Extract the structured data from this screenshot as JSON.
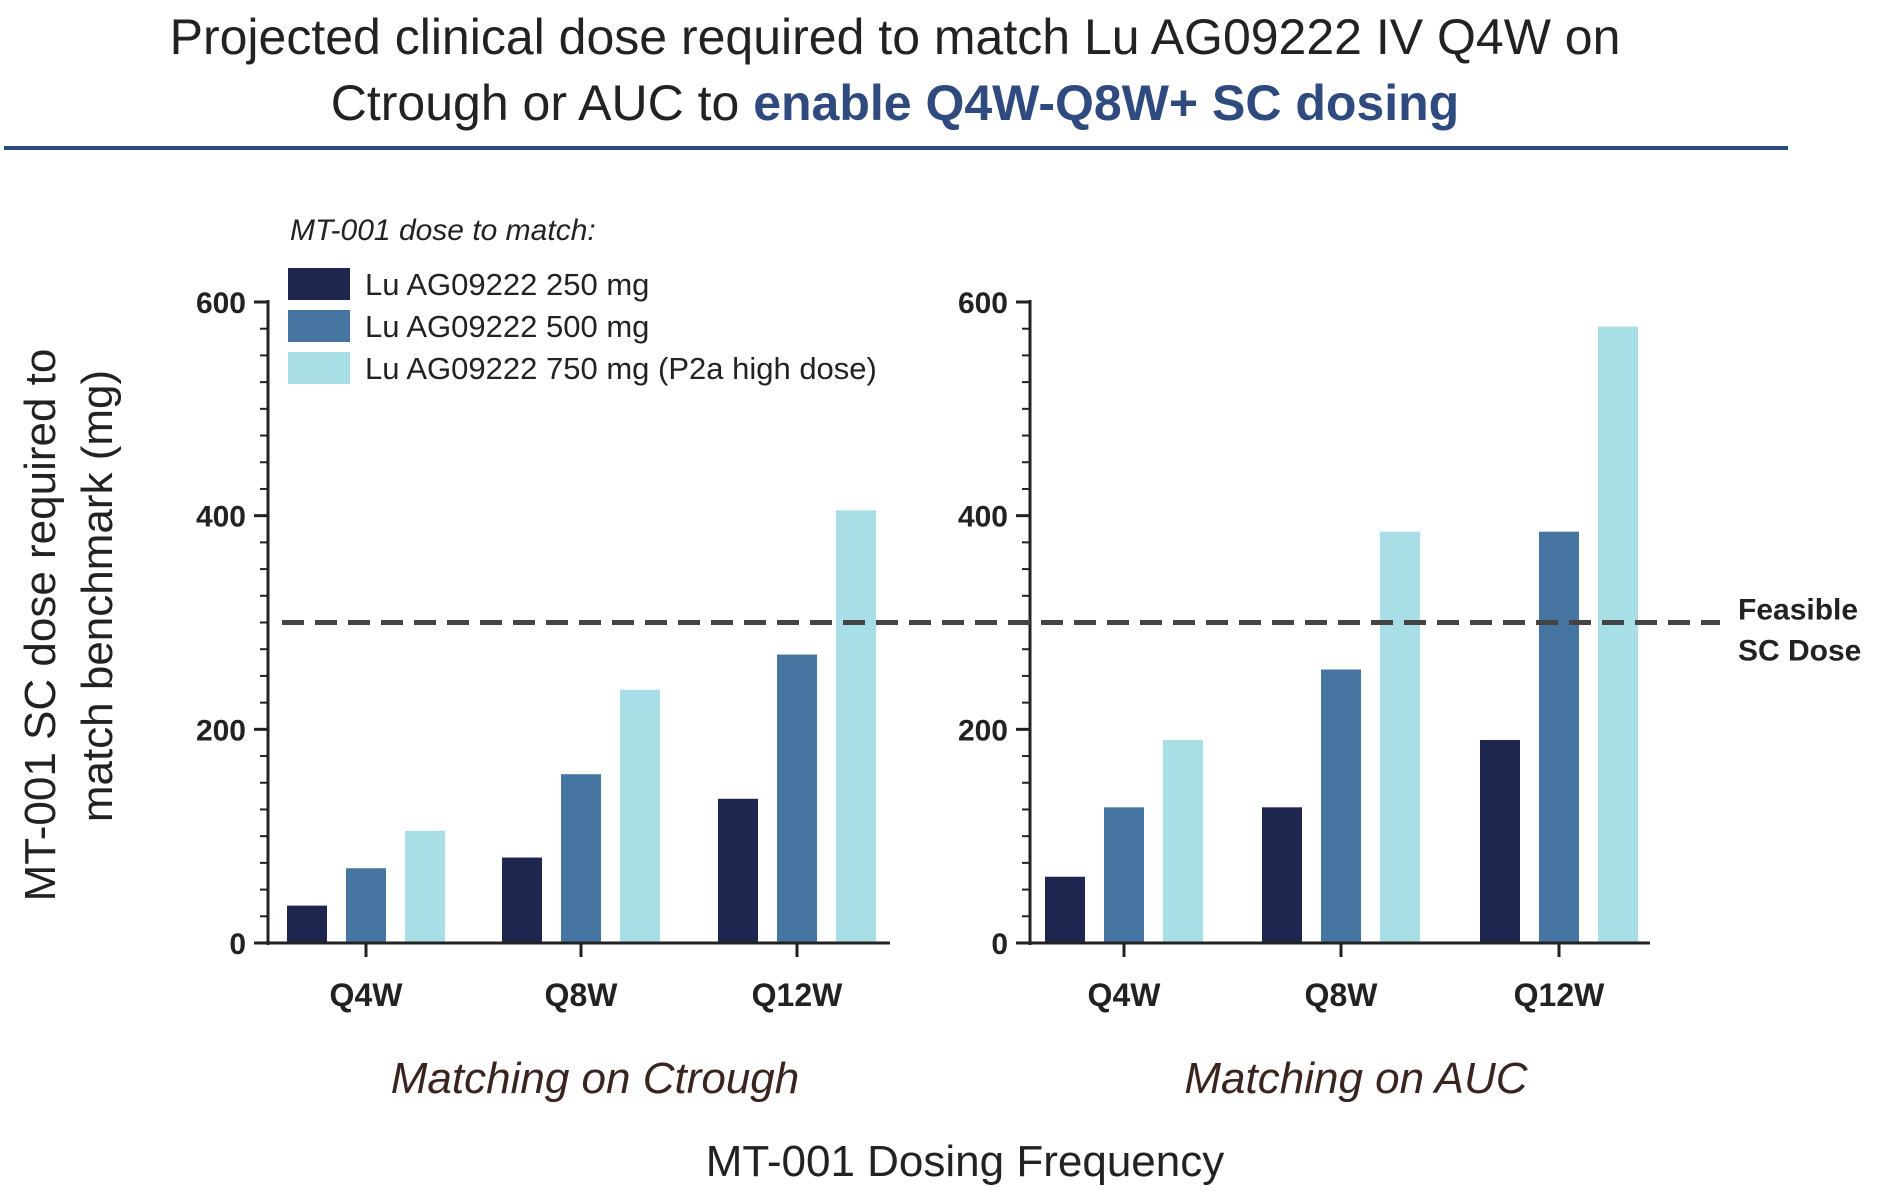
{
  "header": {
    "title_part1": "Projected clinical dose required to match Lu AG09222 IV Q4W on",
    "title_part2": "Ctrough or AUC to ",
    "title_accent": "enable Q4W-Q8W+ SC dosing"
  },
  "chart_data": {
    "type": "bar",
    "ylabel": "MT-001 SC dose required to match benchmark (mg)",
    "ylabel_lines": [
      "MT-001 SC dose required to",
      "match benchmark (mg)"
    ],
    "xlabel": "MT-001 Dosing Frequency",
    "ylim": [
      0,
      600
    ],
    "yticks": [
      0,
      200,
      400,
      600
    ],
    "legend_title": "MT-001 dose to match:",
    "legend_placement": "top-left",
    "categories": [
      "Q4W",
      "Q8W",
      "Q12W"
    ],
    "colors": [
      "#1e2650",
      "#4775a1",
      "#a8dfe6"
    ],
    "reference_line": {
      "value": 300,
      "label_lines": [
        "Feasible",
        "SC Dose"
      ],
      "style": "dashed"
    },
    "panels": [
      {
        "label": "Matching on Ctrough",
        "series": [
          {
            "name": "Lu AG09222 250 mg",
            "values": [
              35,
              80,
              135
            ]
          },
          {
            "name": "Lu AG09222 500 mg",
            "values": [
              70,
              158,
              270
            ]
          },
          {
            "name": "Lu AG09222 750 mg (P2a high dose)",
            "values": [
              105,
              237,
              405
            ]
          }
        ]
      },
      {
        "label": "Matching on AUC",
        "series": [
          {
            "name": "Lu AG09222 250 mg",
            "values": [
              62,
              127,
              190
            ]
          },
          {
            "name": "Lu AG09222 500 mg",
            "values": [
              127,
              256,
              385
            ]
          },
          {
            "name": "Lu AG09222 750 mg (P2a high dose)",
            "values": [
              190,
              385,
              577
            ]
          }
        ]
      }
    ]
  }
}
